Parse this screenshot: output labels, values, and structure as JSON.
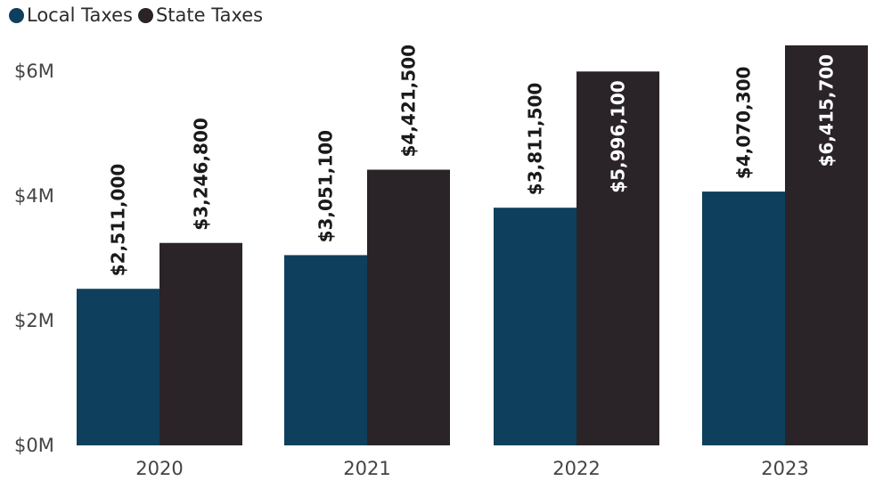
{
  "chart_data": {
    "type": "bar",
    "categories": [
      "2020",
      "2021",
      "2022",
      "2023"
    ],
    "series": [
      {
        "name": "Local Taxes",
        "color": "#0e3f5c",
        "values": [
          2511000,
          3051100,
          3811500,
          4070300
        ],
        "labels": [
          "$2,511,000",
          "$3,051,100",
          "$3,811,500",
          "$4,070,300"
        ]
      },
      {
        "name": "State Taxes",
        "color": "#2a2328",
        "values": [
          3246800,
          4421500,
          5996100,
          6415700
        ],
        "labels": [
          "$3,246,800",
          "$4,421,500",
          "$5,996,100",
          "$6,415,700"
        ]
      }
    ],
    "y_ticks": [
      {
        "value": 0,
        "label": "$0M"
      },
      {
        "value": 2000000,
        "label": "$2M"
      },
      {
        "value": 4000000,
        "label": "$4M"
      },
      {
        "value": 6000000,
        "label": "$6M"
      }
    ],
    "ylim": [
      0,
      6500000
    ],
    "grid": false,
    "legend_position": "top-left",
    "title": "",
    "xlabel": "",
    "ylabel": ""
  }
}
